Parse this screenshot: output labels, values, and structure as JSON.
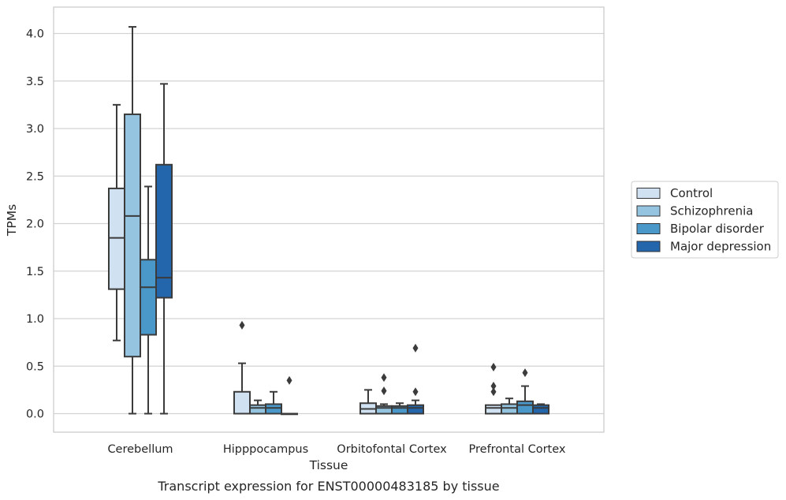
{
  "chart_data": {
    "type": "box",
    "xlabel": "Tissue",
    "ylabel": "TPMs",
    "caption": "Transcript expression for ENST00000483185 by tissue",
    "ylim": [
      -0.2,
      4.27
    ],
    "yticks": [
      "0.0",
      "0.5",
      "1.0",
      "1.5",
      "2.0",
      "2.5",
      "3.0",
      "3.5",
      "4.0"
    ],
    "grid": "horizontal",
    "legend_position": "right",
    "categories": [
      "Cerebellum",
      "Hipppocampus",
      "Orbitofontal Cortex",
      "Prefrontal Cortex"
    ],
    "series": [
      {
        "name": "Control",
        "color": "#d0e1f2",
        "boxes": [
          {
            "whislo": 0.77,
            "q1": 1.31,
            "med": 1.85,
            "q3": 2.37,
            "whishi": 3.25,
            "fliers": []
          },
          {
            "whislo": 0.0,
            "q1": 0.0,
            "med": 0.0,
            "q3": 0.23,
            "whishi": 0.53,
            "fliers": [
              0.93
            ]
          },
          {
            "whislo": 0.0,
            "q1": 0.0,
            "med": 0.05,
            "q3": 0.11,
            "whishi": 0.25,
            "fliers": []
          },
          {
            "whislo": 0.0,
            "q1": 0.0,
            "med": 0.06,
            "q3": 0.09,
            "whishi": 0.09,
            "fliers": [
              0.23,
              0.29,
              0.49
            ]
          }
        ]
      },
      {
        "name": "Schizophrenia",
        "color": "#94c4df",
        "boxes": [
          {
            "whislo": 0.0,
            "q1": 0.6,
            "med": 2.08,
            "q3": 3.15,
            "whishi": 4.07,
            "fliers": []
          },
          {
            "whislo": 0.0,
            "q1": 0.0,
            "med": 0.06,
            "q3": 0.09,
            "whishi": 0.14,
            "fliers": []
          },
          {
            "whislo": 0.0,
            "q1": 0.0,
            "med": 0.06,
            "q3": 0.08,
            "whishi": 0.1,
            "fliers": [
              0.24,
              0.38
            ]
          },
          {
            "whislo": 0.0,
            "q1": 0.0,
            "med": 0.06,
            "q3": 0.1,
            "whishi": 0.16,
            "fliers": []
          }
        ]
      },
      {
        "name": "Bipolar disorder",
        "color": "#4a98c9",
        "boxes": [
          {
            "whislo": 0.0,
            "q1": 0.83,
            "med": 1.33,
            "q3": 1.62,
            "whishi": 2.39,
            "fliers": []
          },
          {
            "whislo": 0.0,
            "q1": 0.0,
            "med": 0.06,
            "q3": 0.1,
            "whishi": 0.23,
            "fliers": []
          },
          {
            "whislo": 0.0,
            "q1": 0.0,
            "med": 0.06,
            "q3": 0.08,
            "whishi": 0.11,
            "fliers": []
          },
          {
            "whislo": 0.0,
            "q1": 0.0,
            "med": 0.09,
            "q3": 0.13,
            "whishi": 0.29,
            "fliers": [
              0.43
            ]
          }
        ]
      },
      {
        "name": "Major depression",
        "color": "#2366ac",
        "boxes": [
          {
            "whislo": 0.0,
            "q1": 1.22,
            "med": 1.43,
            "q3": 2.62,
            "whishi": 3.47,
            "fliers": []
          },
          {
            "whislo": 0.0,
            "q1": 0.0,
            "med": 0.0,
            "q3": 0.0,
            "whishi": 0.0,
            "fliers": [
              0.35
            ]
          },
          {
            "whislo": 0.0,
            "q1": 0.0,
            "med": 0.06,
            "q3": 0.09,
            "whishi": 0.14,
            "fliers": [
              0.23,
              0.69
            ]
          },
          {
            "whislo": 0.0,
            "q1": 0.0,
            "med": 0.06,
            "q3": 0.09,
            "whishi": 0.1,
            "fliers": []
          }
        ]
      }
    ]
  }
}
